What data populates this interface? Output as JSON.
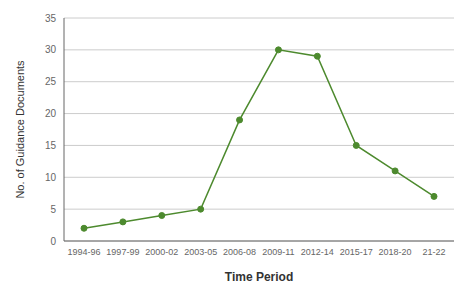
{
  "chart_data": {
    "type": "line",
    "categories": [
      "1994-96",
      "1997-99",
      "2000-02",
      "2003-05",
      "2006-08",
      "2009-11",
      "2012-14",
      "2015-17",
      "2018-20",
      "21-22"
    ],
    "values": [
      2,
      3,
      4,
      5,
      19,
      30,
      29,
      15,
      11,
      7
    ],
    "color": "#4d8a2e",
    "marker": "circle",
    "xlabel": "Time Period",
    "ylabel": "No. of Guidance Documents",
    "ylim": [
      0,
      35
    ],
    "yticks": [
      0,
      5,
      10,
      15,
      20,
      25,
      30,
      35
    ],
    "grid": true
  }
}
